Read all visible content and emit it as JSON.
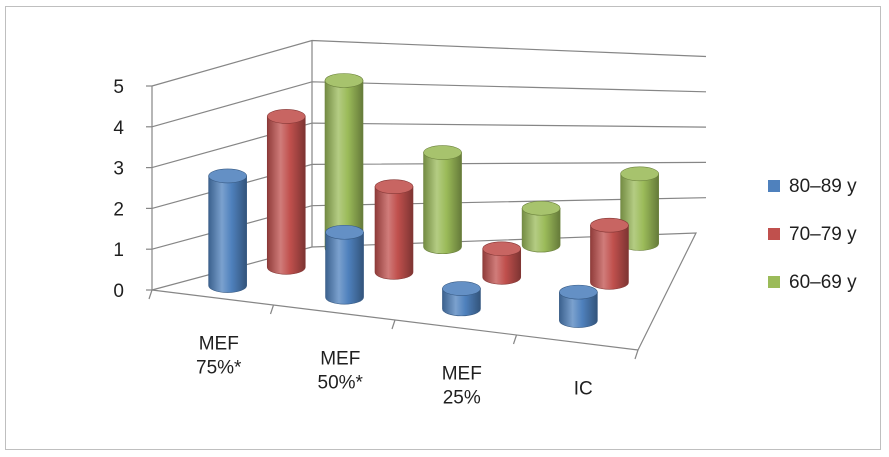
{
  "chart_data": {
    "type": "bar",
    "subtype": "3d-cylinder",
    "title": "",
    "xlabel": "",
    "ylabel": "",
    "ylim": [
      0,
      5
    ],
    "yticks": [
      "0",
      "1",
      "2",
      "3",
      "4",
      "5"
    ],
    "grid": true,
    "legend_position": "right",
    "categories": [
      [
        "MEF",
        "75%*"
      ],
      [
        "MEF",
        "50%*"
      ],
      [
        "MEF",
        "25%"
      ],
      [
        "IC",
        ""
      ]
    ],
    "series": [
      {
        "name": "80–89 y",
        "color": "#4f81bd",
        "values": [
          2.7,
          1.6,
          0.5,
          0.7
        ]
      },
      {
        "name": "70–79 y",
        "color": "#c0504d",
        "values": [
          3.7,
          2.1,
          0.7,
          1.4
        ]
      },
      {
        "name": "60–69 y",
        "color": "#9bbb59",
        "values": [
          4.1,
          2.3,
          0.9,
          1.7
        ]
      }
    ]
  }
}
